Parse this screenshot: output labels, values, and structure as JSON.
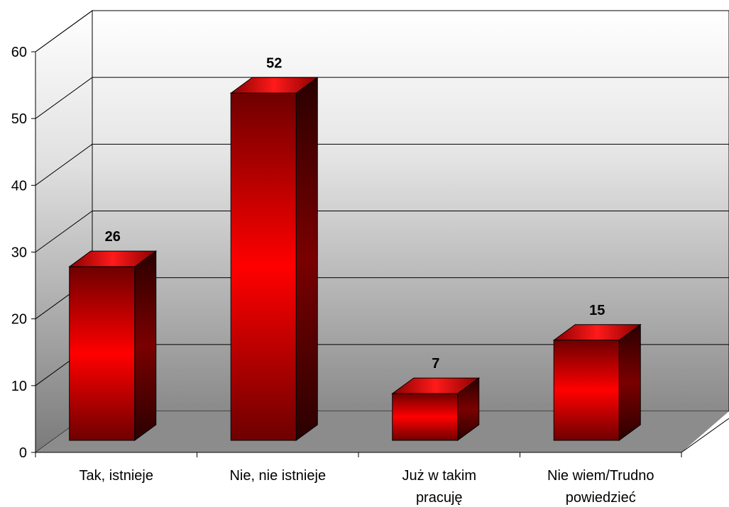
{
  "chart_data": {
    "type": "bar",
    "style": "3d-column",
    "categories": [
      [
        "Tak, istnieje"
      ],
      [
        "Nie, nie istnieje"
      ],
      [
        "Już w takim",
        "pracuję"
      ],
      [
        "Nie wiem/Trudno",
        "powiedzieć"
      ]
    ],
    "values": [
      26,
      52,
      7,
      15
    ],
    "data_labels": [
      "26",
      "52",
      "7",
      "15"
    ],
    "title": "",
    "xlabel": "",
    "ylabel": "",
    "ylim": [
      0,
      60
    ],
    "yticks": [
      0,
      10,
      20,
      30,
      40,
      50,
      60
    ],
    "grid": true,
    "legend": "none",
    "colors": {
      "bar_light": "#ff0000",
      "bar_dark": "#6e0000",
      "bar_side": "#3a0000",
      "floor": "#8c8c8c"
    }
  }
}
